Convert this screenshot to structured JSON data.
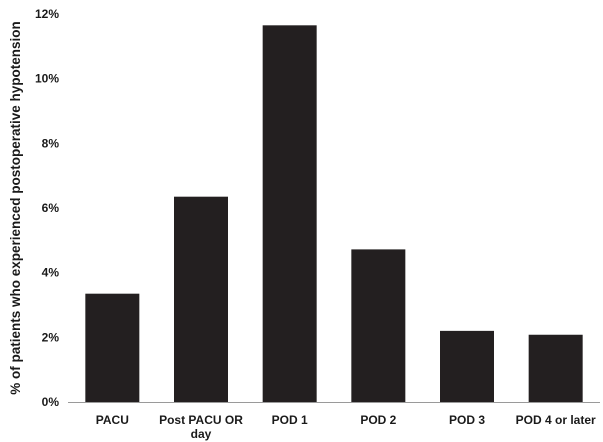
{
  "chart_data": {
    "type": "bar",
    "title": "",
    "xlabel": "",
    "ylabel": "% of patients who experienced postoperative hypotension",
    "categories": [
      "PACU",
      "Post PACU OR day",
      "POD 1",
      "POD 2",
      "POD 3",
      "POD 4 or later"
    ],
    "category_lines": [
      [
        "PACU"
      ],
      [
        "Post PACU OR",
        "day"
      ],
      [
        "POD 1"
      ],
      [
        "POD 2"
      ],
      [
        "POD 3"
      ],
      [
        "POD 4 or later"
      ]
    ],
    "values": [
      3.35,
      6.35,
      11.65,
      4.72,
      2.2,
      2.08
    ],
    "ylim": [
      0,
      12
    ],
    "yticks": [
      0,
      2,
      4,
      6,
      8,
      10,
      12
    ],
    "ytick_labels": [
      "0%",
      "2%",
      "4%",
      "6%",
      "8%",
      "10%",
      "12%"
    ],
    "bar_color": "#231f20",
    "axis_color": "#9a9a9a",
    "grid": false,
    "legend": "none"
  }
}
